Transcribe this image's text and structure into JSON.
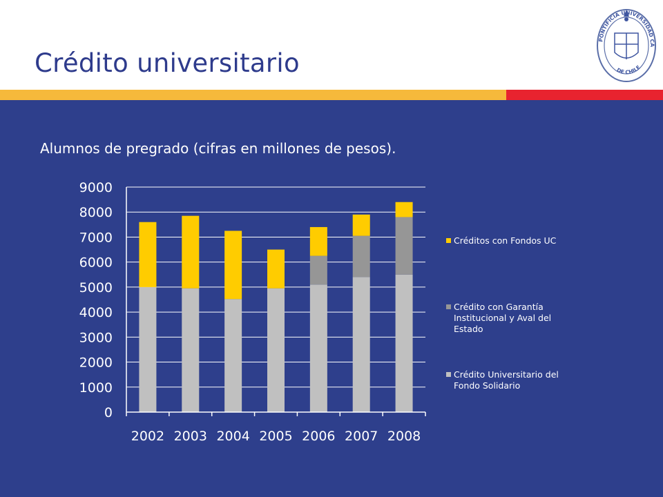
{
  "slide": {
    "title": "Crédito universitario",
    "subtitle": "Alumnos de pregrado (cifras en millones de pesos).",
    "colors": {
      "title": "#2e3b8c",
      "background": "#2e3f8c",
      "stripe_yellow": "#f6b93b",
      "stripe_red": "#e8232f"
    }
  },
  "logo": {
    "icon": "university-seal-icon",
    "text_top": "PONTIFICIA UNIVERSIDAD CATÓLICA",
    "text_bottom": "DE CHILE"
  },
  "legend": [
    {
      "line1": "Créditos con Fondos UC",
      "line2": "",
      "line3": "",
      "color": "#ffcc00"
    },
    {
      "line1": "Crédito con Garantía",
      "line2": "Institucional y Aval del",
      "line3": "Estado",
      "color": "#969696"
    },
    {
      "line1": "Crédito Universitario del",
      "line2": "Fondo Solidario",
      "line3": "",
      "color": "#c0c0c0"
    }
  ],
  "chart_data": {
    "type": "bar",
    "stacked": true,
    "categories": [
      "2002",
      "2003",
      "2004",
      "2005",
      "2006",
      "2007",
      "2008"
    ],
    "series": [
      {
        "name": "Crédito Universitario del Fondo Solidario",
        "color": "#c0c0c0",
        "values": [
          5000,
          4950,
          4520,
          4950,
          5100,
          5400,
          5500
        ]
      },
      {
        "name": "Crédito con Garantía Institucional y Aval del Estado",
        "color": "#969696",
        "values": [
          0,
          0,
          0,
          0,
          1150,
          1650,
          2300
        ]
      },
      {
        "name": "Créditos con Fondos UC",
        "color": "#ffcc00",
        "values": [
          2600,
          2900,
          2730,
          1550,
          1150,
          850,
          600
        ]
      }
    ],
    "ylim": [
      0,
      9000
    ],
    "yticks": [
      "0",
      "1000",
      "2000",
      "3000",
      "4000",
      "5000",
      "6000",
      "7000",
      "8000",
      "9000"
    ],
    "grid": true,
    "legend_position": "right"
  }
}
